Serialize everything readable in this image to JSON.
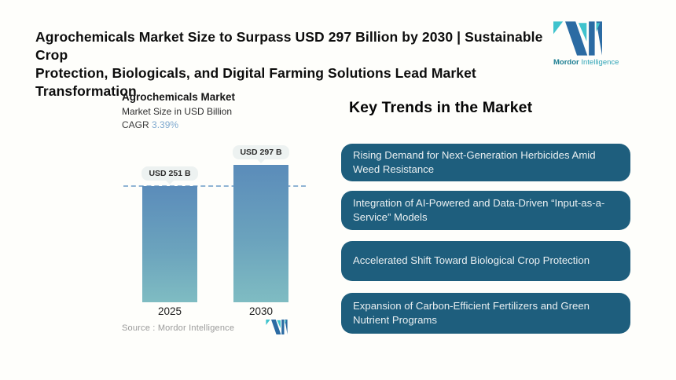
{
  "header": {
    "title_line1": "Agrochemicals Market Size to Surpass USD 297 Billion by 2030 | Sustainable Crop",
    "title_line2": "Protection, Biologicals, and Digital Farming Solutions Lead Market Transformation",
    "brand": {
      "name_bold": "Mordor",
      "name_regular": "Intelligence"
    }
  },
  "chart_data": {
    "type": "bar",
    "title": "Agrochemicals Market",
    "subtitle": "Market Size in USD Billion",
    "cagr_label": "CAGR",
    "cagr_value": "3.39%",
    "categories": [
      "2025",
      "2030"
    ],
    "values": [
      251,
      297
    ],
    "value_labels": [
      "USD 251 B",
      "USD 297 B"
    ],
    "unit": "USD Billion",
    "reference_line": 251,
    "grid": false,
    "legend": false,
    "source": "Source :  Mordor Intelligence"
  },
  "trends": {
    "heading": "Key Trends in the Market",
    "items": [
      {
        "text": "Rising Demand for Next-Generation Herbicides Amid Weed Resistance"
      },
      {
        "text": "Integration of AI-Powered and Data-Driven “Input-as-a-Service” Models"
      },
      {
        "text": "Accelerated Shift Toward Biological Crop Protection"
      },
      {
        "text": "Expansion of Carbon-Efficient Fertilizers and Green Nutrient Programs"
      }
    ]
  },
  "colors": {
    "brand_blue": "#2b6ba3",
    "brand_teal": "#3fc3cd",
    "trend_box": "#1e5e7d",
    "bar_gradient_top": "#5b8cba",
    "bar_gradient_bottom": "#7fbcc2",
    "reference_line": "#8fb4d4",
    "cagr_value_color": "#7ea9cf"
  },
  "icons": {
    "logo": "mordor-intelligence-mark"
  }
}
